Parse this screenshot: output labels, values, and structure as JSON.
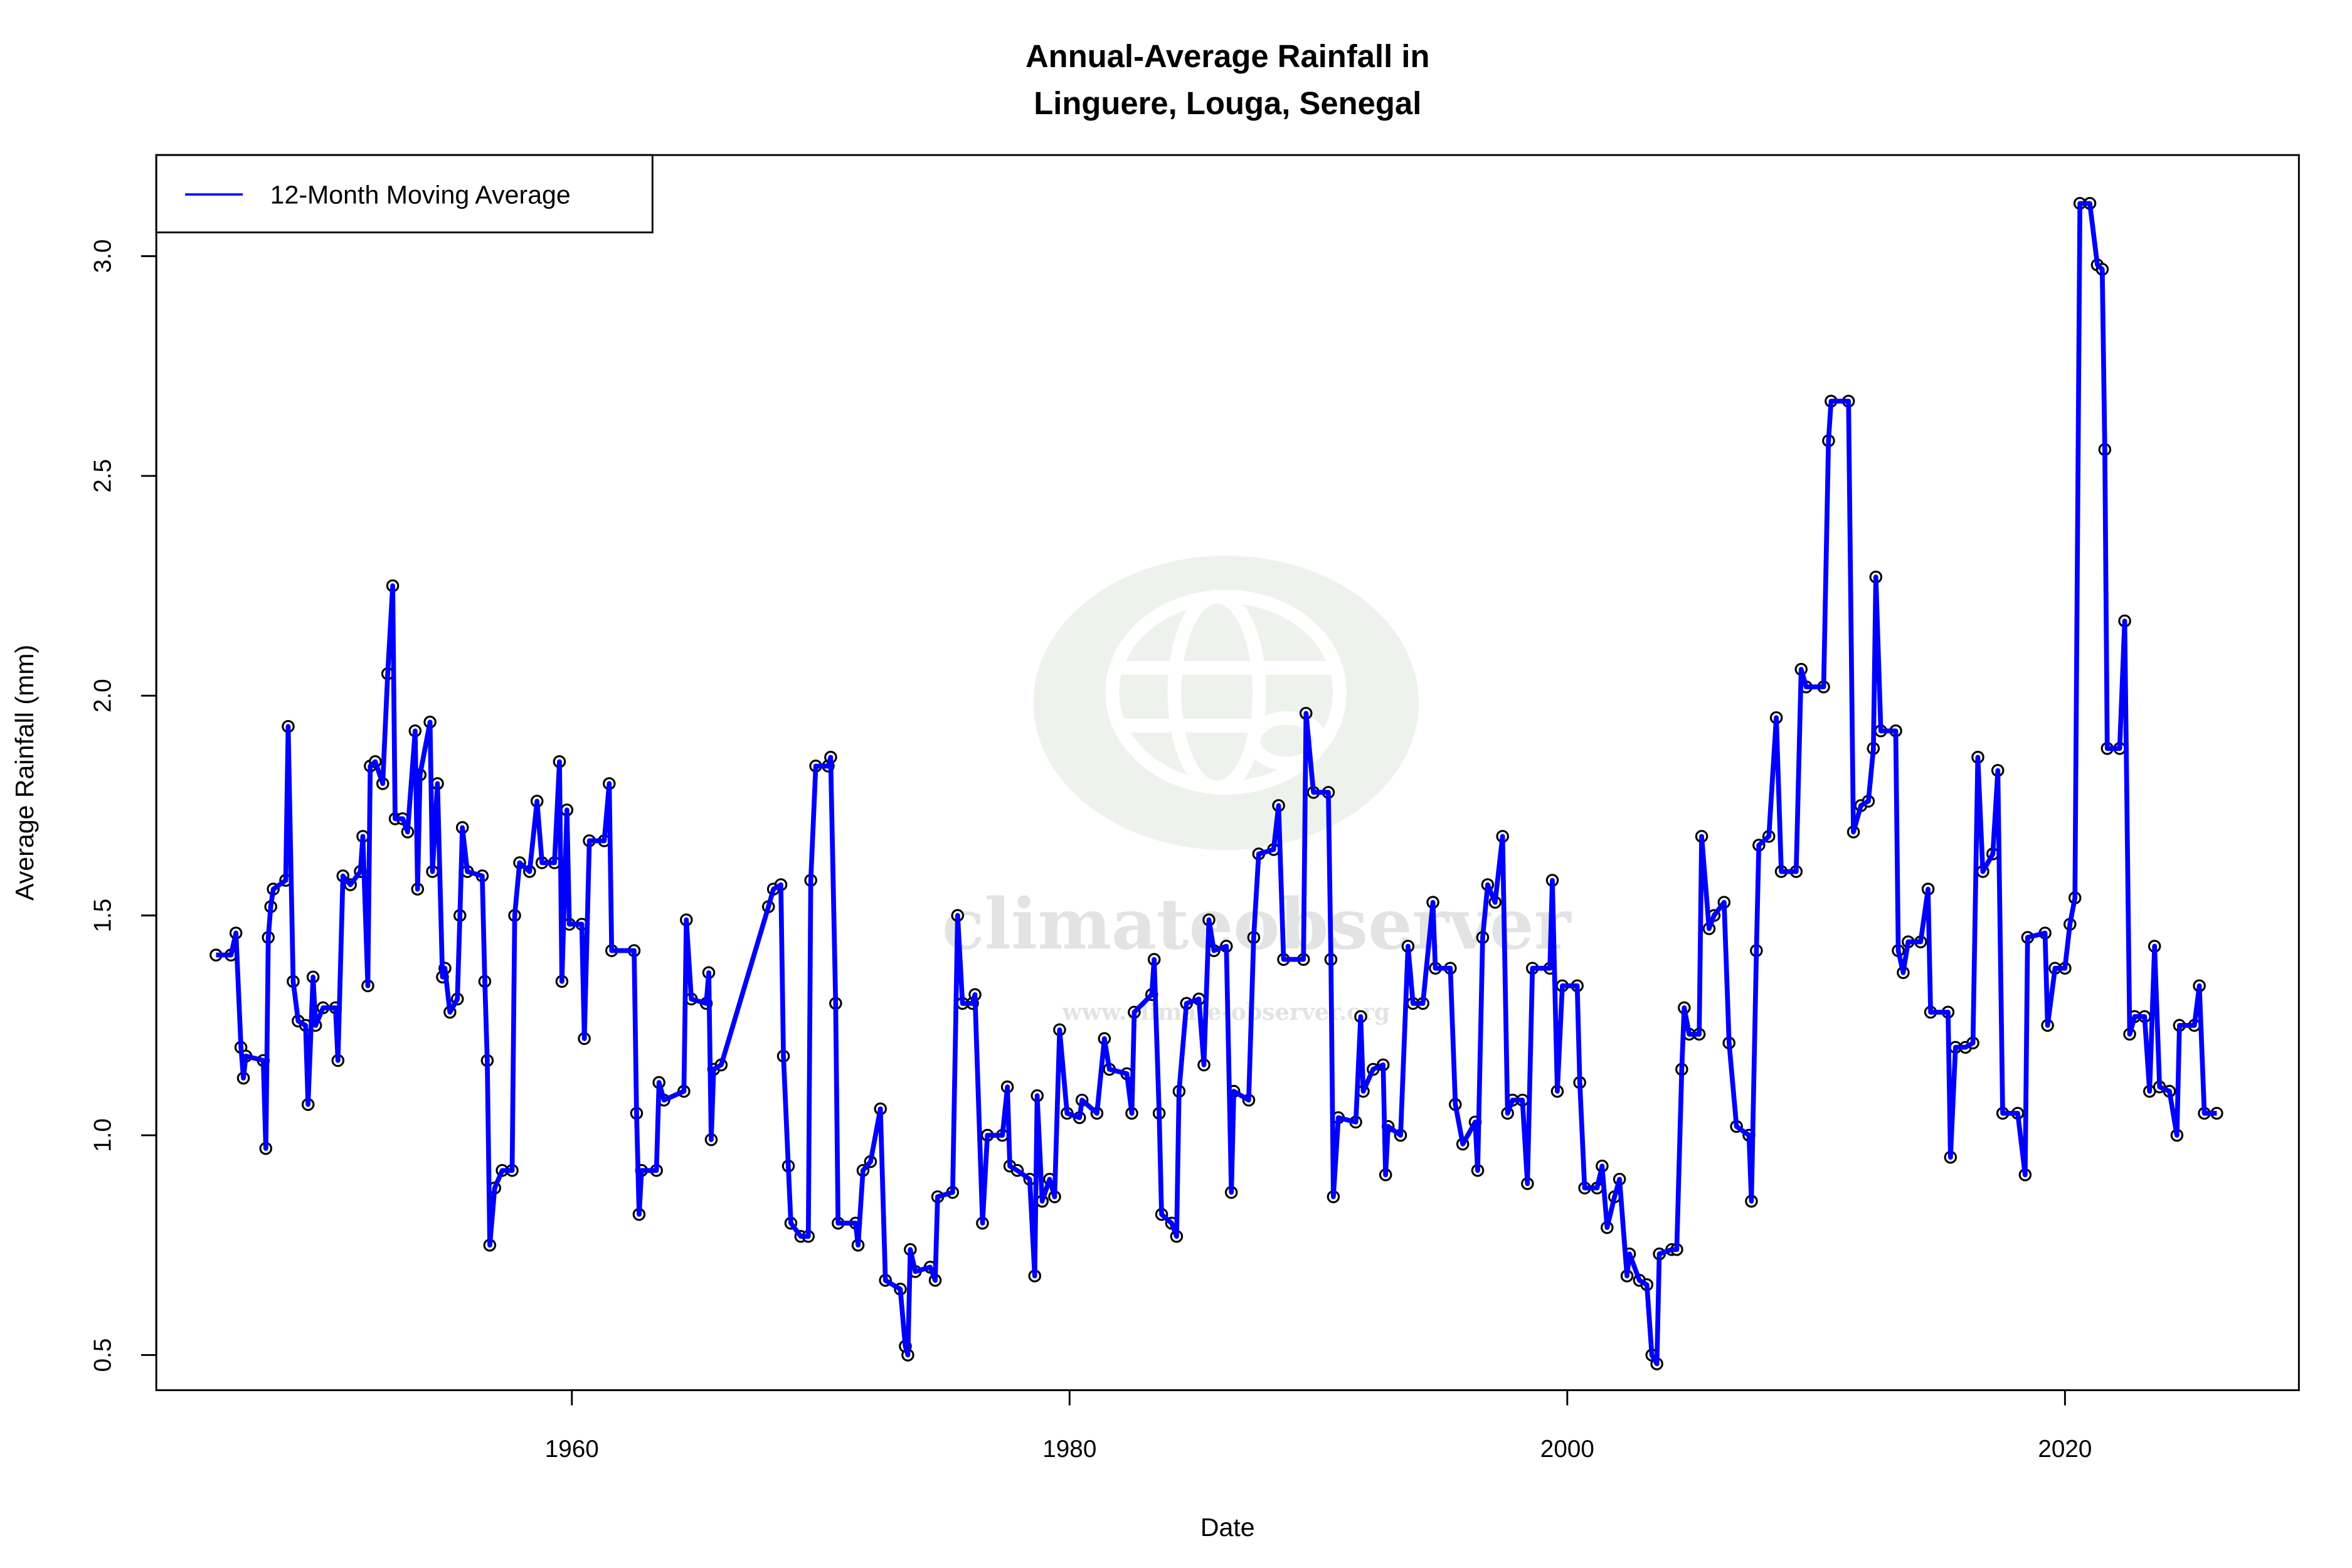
{
  "chart_data": {
    "type": "line",
    "title_lines": [
      "Annual-Average Rainfall in",
      "Linguere, Louga, Senegal"
    ],
    "xlabel": "Date",
    "ylabel": "Average Rainfall (mm)",
    "xlim": [
      1943.3,
      2029.4
    ],
    "ylim": [
      0.42,
      3.23
    ],
    "x_ticks": [
      1960,
      1980,
      2000,
      2020
    ],
    "y_ticks": [
      "0.5",
      "1.0",
      "1.5",
      "2.0",
      "2.5",
      "3.0"
    ],
    "grid": false,
    "legend": {
      "placement": "top-left",
      "entries": [
        {
          "label": "12-Month Moving Average",
          "color": "#0000ff"
        }
      ]
    },
    "colors": {
      "line": "#0000ff",
      "markers": "#000000"
    },
    "series": [
      {
        "name": "12-Month Moving Average",
        "points": [
          [
            1945.7,
            1.41
          ],
          [
            1946.3,
            1.41
          ],
          [
            1946.5,
            1.46
          ],
          [
            1946.7,
            1.2
          ],
          [
            1946.8,
            1.13
          ],
          [
            1946.9,
            1.18
          ],
          [
            1947.6,
            1.17
          ],
          [
            1947.7,
            0.97
          ],
          [
            1947.8,
            1.45
          ],
          [
            1947.9,
            1.52
          ],
          [
            1948.0,
            1.56
          ],
          [
            1948.5,
            1.58
          ],
          [
            1948.6,
            1.93
          ],
          [
            1948.8,
            1.35
          ],
          [
            1949.0,
            1.26
          ],
          [
            1949.3,
            1.25
          ],
          [
            1949.4,
            1.07
          ],
          [
            1949.6,
            1.36
          ],
          [
            1949.7,
            1.25
          ],
          [
            1950.0,
            1.29
          ],
          [
            1950.5,
            1.29
          ],
          [
            1950.6,
            1.17
          ],
          [
            1950.8,
            1.59
          ],
          [
            1951.1,
            1.57
          ],
          [
            1951.5,
            1.6
          ],
          [
            1951.6,
            1.68
          ],
          [
            1951.8,
            1.34
          ],
          [
            1951.9,
            1.84
          ],
          [
            1952.1,
            1.85
          ],
          [
            1952.4,
            1.8
          ],
          [
            1952.6,
            2.05
          ],
          [
            1952.8,
            2.25
          ],
          [
            1952.9,
            1.72
          ],
          [
            1953.2,
            1.72
          ],
          [
            1953.4,
            1.69
          ],
          [
            1953.7,
            1.92
          ],
          [
            1953.8,
            1.56
          ],
          [
            1953.9,
            1.82
          ],
          [
            1954.3,
            1.94
          ],
          [
            1954.4,
            1.6
          ],
          [
            1954.6,
            1.8
          ],
          [
            1954.8,
            1.36
          ],
          [
            1954.9,
            1.38
          ],
          [
            1955.1,
            1.28
          ],
          [
            1955.4,
            1.31
          ],
          [
            1955.5,
            1.5
          ],
          [
            1955.6,
            1.7
          ],
          [
            1955.8,
            1.6
          ],
          [
            1956.4,
            1.59
          ],
          [
            1956.5,
            1.35
          ],
          [
            1956.6,
            1.17
          ],
          [
            1956.7,
            0.75
          ],
          [
            1956.9,
            0.88
          ],
          [
            1957.2,
            0.92
          ],
          [
            1957.6,
            0.92
          ],
          [
            1957.7,
            1.5
          ],
          [
            1957.9,
            1.62
          ],
          [
            1958.3,
            1.6
          ],
          [
            1958.6,
            1.76
          ],
          [
            1958.8,
            1.62
          ],
          [
            1959.3,
            1.62
          ],
          [
            1959.5,
            1.85
          ],
          [
            1959.6,
            1.35
          ],
          [
            1959.8,
            1.74
          ],
          [
            1959.9,
            1.48
          ],
          [
            1960.4,
            1.48
          ],
          [
            1960.5,
            1.22
          ],
          [
            1960.7,
            1.67
          ],
          [
            1961.3,
            1.67
          ],
          [
            1961.5,
            1.8
          ],
          [
            1961.6,
            1.42
          ],
          [
            1962.5,
            1.42
          ],
          [
            1962.6,
            1.05
          ],
          [
            1962.7,
            0.82
          ],
          [
            1962.8,
            0.92
          ],
          [
            1963.4,
            0.92
          ],
          [
            1963.5,
            1.12
          ],
          [
            1963.7,
            1.08
          ],
          [
            1964.5,
            1.1
          ],
          [
            1964.6,
            1.49
          ],
          [
            1964.8,
            1.31
          ],
          [
            1965.4,
            1.3
          ],
          [
            1965.5,
            1.37
          ],
          [
            1965.6,
            0.99
          ],
          [
            1965.7,
            1.15
          ],
          [
            1966.0,
            1.16
          ],
          [
            1967.9,
            1.52
          ],
          [
            1968.1,
            1.56
          ],
          [
            1968.4,
            1.57
          ],
          [
            1968.5,
            1.18
          ],
          [
            1968.7,
            0.93
          ],
          [
            1968.8,
            0.8
          ],
          [
            1969.2,
            0.77
          ],
          [
            1969.5,
            0.77
          ],
          [
            1969.6,
            1.58
          ],
          [
            1969.8,
            1.84
          ],
          [
            1970.3,
            1.84
          ],
          [
            1970.4,
            1.86
          ],
          [
            1970.6,
            1.3
          ],
          [
            1970.7,
            0.8
          ],
          [
            1971.4,
            0.8
          ],
          [
            1971.5,
            0.75
          ],
          [
            1971.7,
            0.92
          ],
          [
            1972.0,
            0.94
          ],
          [
            1972.4,
            1.06
          ],
          [
            1972.6,
            0.67
          ],
          [
            1973.2,
            0.65
          ],
          [
            1973.4,
            0.52
          ],
          [
            1973.5,
            0.5
          ],
          [
            1973.6,
            0.74
          ],
          [
            1973.8,
            0.69
          ],
          [
            1974.4,
            0.7
          ],
          [
            1974.6,
            0.67
          ],
          [
            1974.7,
            0.86
          ],
          [
            1975.3,
            0.87
          ],
          [
            1975.5,
            1.5
          ],
          [
            1975.7,
            1.3
          ],
          [
            1976.1,
            1.3
          ],
          [
            1976.2,
            1.32
          ],
          [
            1976.5,
            0.8
          ],
          [
            1976.7,
            1.0
          ],
          [
            1977.3,
            1.0
          ],
          [
            1977.5,
            1.11
          ],
          [
            1977.6,
            0.93
          ],
          [
            1977.9,
            0.92
          ],
          [
            1978.4,
            0.9
          ],
          [
            1978.6,
            0.68
          ],
          [
            1978.7,
            1.09
          ],
          [
            1978.9,
            0.85
          ],
          [
            1979.2,
            0.9
          ],
          [
            1979.4,
            0.86
          ],
          [
            1979.6,
            1.24
          ],
          [
            1979.9,
            1.05
          ],
          [
            1980.4,
            1.04
          ],
          [
            1980.5,
            1.08
          ],
          [
            1981.1,
            1.05
          ],
          [
            1981.4,
            1.22
          ],
          [
            1981.6,
            1.15
          ],
          [
            1982.3,
            1.14
          ],
          [
            1982.5,
            1.05
          ],
          [
            1982.6,
            1.28
          ],
          [
            1983.3,
            1.32
          ],
          [
            1983.4,
            1.4
          ],
          [
            1983.6,
            1.05
          ],
          [
            1983.7,
            0.82
          ],
          [
            1984.1,
            0.8
          ],
          [
            1984.3,
            0.77
          ],
          [
            1984.4,
            1.1
          ],
          [
            1984.7,
            1.3
          ],
          [
            1985.2,
            1.31
          ],
          [
            1985.4,
            1.16
          ],
          [
            1985.6,
            1.49
          ],
          [
            1985.8,
            1.42
          ],
          [
            1986.3,
            1.43
          ],
          [
            1986.5,
            0.87
          ],
          [
            1986.6,
            1.1
          ],
          [
            1987.2,
            1.08
          ],
          [
            1987.4,
            1.45
          ],
          [
            1987.6,
            1.64
          ],
          [
            1988.2,
            1.65
          ],
          [
            1988.4,
            1.75
          ],
          [
            1988.6,
            1.4
          ],
          [
            1989.4,
            1.4
          ],
          [
            1989.5,
            1.96
          ],
          [
            1989.8,
            1.78
          ],
          [
            1990.4,
            1.78
          ],
          [
            1990.5,
            1.4
          ],
          [
            1990.6,
            0.86
          ],
          [
            1990.8,
            1.04
          ],
          [
            1991.5,
            1.03
          ],
          [
            1991.7,
            1.27
          ],
          [
            1991.8,
            1.1
          ],
          [
            1992.2,
            1.15
          ],
          [
            1992.6,
            1.16
          ],
          [
            1992.7,
            0.91
          ],
          [
            1992.8,
            1.02
          ],
          [
            1993.3,
            1.0
          ],
          [
            1993.6,
            1.43
          ],
          [
            1993.8,
            1.3
          ],
          [
            1994.2,
            1.3
          ],
          [
            1994.6,
            1.53
          ],
          [
            1994.7,
            1.38
          ],
          [
            1995.3,
            1.38
          ],
          [
            1995.5,
            1.07
          ],
          [
            1995.8,
            0.98
          ],
          [
            1996.3,
            1.03
          ],
          [
            1996.4,
            0.92
          ],
          [
            1996.6,
            1.45
          ],
          [
            1996.8,
            1.57
          ],
          [
            1997.1,
            1.53
          ],
          [
            1997.4,
            1.68
          ],
          [
            1997.6,
            1.05
          ],
          [
            1997.8,
            1.08
          ],
          [
            1998.2,
            1.08
          ],
          [
            1998.4,
            0.89
          ],
          [
            1998.6,
            1.38
          ],
          [
            1999.3,
            1.38
          ],
          [
            1999.4,
            1.58
          ],
          [
            1999.6,
            1.1
          ],
          [
            1999.8,
            1.34
          ],
          [
            2000.4,
            1.34
          ],
          [
            2000.5,
            1.12
          ],
          [
            2000.7,
            0.88
          ],
          [
            2001.2,
            0.88
          ],
          [
            2001.4,
            0.93
          ],
          [
            2001.6,
            0.79
          ],
          [
            2001.9,
            0.86
          ],
          [
            2002.1,
            0.9
          ],
          [
            2002.4,
            0.68
          ],
          [
            2002.5,
            0.73
          ],
          [
            2002.9,
            0.67
          ],
          [
            2003.2,
            0.66
          ],
          [
            2003.4,
            0.5
          ],
          [
            2003.6,
            0.48
          ],
          [
            2003.7,
            0.73
          ],
          [
            2004.2,
            0.74
          ],
          [
            2004.4,
            0.74
          ],
          [
            2004.6,
            1.15
          ],
          [
            2004.7,
            1.29
          ],
          [
            2004.9,
            1.23
          ],
          [
            2005.3,
            1.23
          ],
          [
            2005.4,
            1.68
          ],
          [
            2005.7,
            1.47
          ],
          [
            2005.9,
            1.5
          ],
          [
            2006.3,
            1.53
          ],
          [
            2006.5,
            1.21
          ],
          [
            2006.8,
            1.02
          ],
          [
            2007.3,
            1.0
          ],
          [
            2007.4,
            0.85
          ],
          [
            2007.6,
            1.42
          ],
          [
            2007.7,
            1.66
          ],
          [
            2008.1,
            1.68
          ],
          [
            2008.4,
            1.95
          ],
          [
            2008.6,
            1.6
          ],
          [
            2009.2,
            1.6
          ],
          [
            2009.4,
            2.06
          ],
          [
            2009.6,
            2.02
          ],
          [
            2010.3,
            2.02
          ],
          [
            2010.5,
            2.58
          ],
          [
            2010.6,
            2.67
          ],
          [
            2011.3,
            2.67
          ],
          [
            2011.5,
            1.69
          ],
          [
            2011.8,
            1.75
          ],
          [
            2012.1,
            1.76
          ],
          [
            2012.3,
            1.88
          ],
          [
            2012.4,
            2.27
          ],
          [
            2012.6,
            1.92
          ],
          [
            2013.2,
            1.92
          ],
          [
            2013.3,
            1.42
          ],
          [
            2013.5,
            1.37
          ],
          [
            2013.7,
            1.44
          ],
          [
            2014.2,
            1.44
          ],
          [
            2014.5,
            1.56
          ],
          [
            2014.6,
            1.28
          ],
          [
            2015.3,
            1.28
          ],
          [
            2015.4,
            0.95
          ],
          [
            2015.6,
            1.2
          ],
          [
            2016.0,
            1.2
          ],
          [
            2016.3,
            1.21
          ],
          [
            2016.5,
            1.86
          ],
          [
            2016.7,
            1.6
          ],
          [
            2017.1,
            1.64
          ],
          [
            2017.3,
            1.83
          ],
          [
            2017.5,
            1.05
          ],
          [
            2018.1,
            1.05
          ],
          [
            2018.4,
            0.91
          ],
          [
            2018.5,
            1.45
          ],
          [
            2019.2,
            1.46
          ],
          [
            2019.3,
            1.25
          ],
          [
            2019.6,
            1.38
          ],
          [
            2020.0,
            1.38
          ],
          [
            2020.2,
            1.48
          ],
          [
            2020.4,
            1.54
          ],
          [
            2020.6,
            3.12
          ],
          [
            2021.0,
            3.12
          ],
          [
            2021.3,
            2.98
          ],
          [
            2021.5,
            2.97
          ],
          [
            2021.6,
            2.56
          ],
          [
            2021.7,
            1.88
          ],
          [
            2022.2,
            1.88
          ],
          [
            2022.4,
            2.17
          ],
          [
            2022.6,
            1.23
          ],
          [
            2022.8,
            1.27
          ],
          [
            2023.2,
            1.27
          ],
          [
            2023.4,
            1.1
          ],
          [
            2023.6,
            1.43
          ],
          [
            2023.8,
            1.11
          ],
          [
            2024.2,
            1.1
          ],
          [
            2024.5,
            1.0
          ],
          [
            2024.6,
            1.25
          ],
          [
            2025.2,
            1.25
          ],
          [
            2025.4,
            1.34
          ],
          [
            2025.6,
            1.05
          ],
          [
            2026.1,
            1.05
          ]
        ]
      }
    ]
  },
  "watermark": {
    "logo_text": "climateobserver",
    "url_text": "www.climate-observer.org"
  }
}
